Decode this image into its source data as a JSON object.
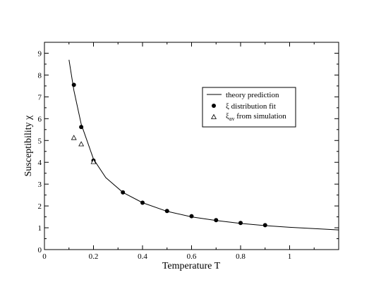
{
  "chart_data": {
    "type": "line",
    "xlabel": "Temperature  T",
    "ylabel": "Susceptibility χ",
    "xlim": [
      0,
      1.2
    ],
    "ylim": [
      0,
      9.5
    ],
    "x_ticks": [
      "0",
      "0.2",
      "0.4",
      "0.6",
      "0.8",
      "1"
    ],
    "x_tick_values": [
      0,
      0.2,
      0.4,
      0.6,
      0.8,
      1.0
    ],
    "y_ticks": [
      "0",
      "1",
      "2",
      "3",
      "4",
      "5",
      "6",
      "7",
      "8",
      "9"
    ],
    "y_tick_values": [
      0,
      1,
      2,
      3,
      4,
      5,
      6,
      7,
      8,
      9
    ],
    "grid": false,
    "legend_position": "upper right",
    "series": [
      {
        "name": "theory prediction",
        "marker": "line",
        "x": [
          0.1,
          0.12,
          0.15,
          0.2,
          0.25,
          0.32,
          0.4,
          0.5,
          0.6,
          0.7,
          0.8,
          0.9,
          1.0,
          1.1,
          1.2
        ],
        "y": [
          8.7,
          7.3,
          5.75,
          4.15,
          3.3,
          2.62,
          2.15,
          1.75,
          1.5,
          1.33,
          1.2,
          1.1,
          1.02,
          0.96,
          0.9
        ]
      },
      {
        "name": "ξ distribution fit",
        "marker": "filled-circle",
        "x": [
          0.12,
          0.15,
          0.2,
          0.32,
          0.4,
          0.5,
          0.6,
          0.7,
          0.8,
          0.9
        ],
        "y": [
          7.55,
          5.62,
          4.08,
          2.62,
          2.15,
          1.77,
          1.53,
          1.35,
          1.22,
          1.12
        ]
      },
      {
        "name": "ξav from simulation",
        "name_main": "ξ",
        "name_sub": "av",
        "name_rest": " from simulation",
        "marker": "open-triangle",
        "x": [
          0.12,
          0.15,
          0.2
        ],
        "y": [
          5.12,
          4.83,
          4.02
        ]
      }
    ]
  }
}
